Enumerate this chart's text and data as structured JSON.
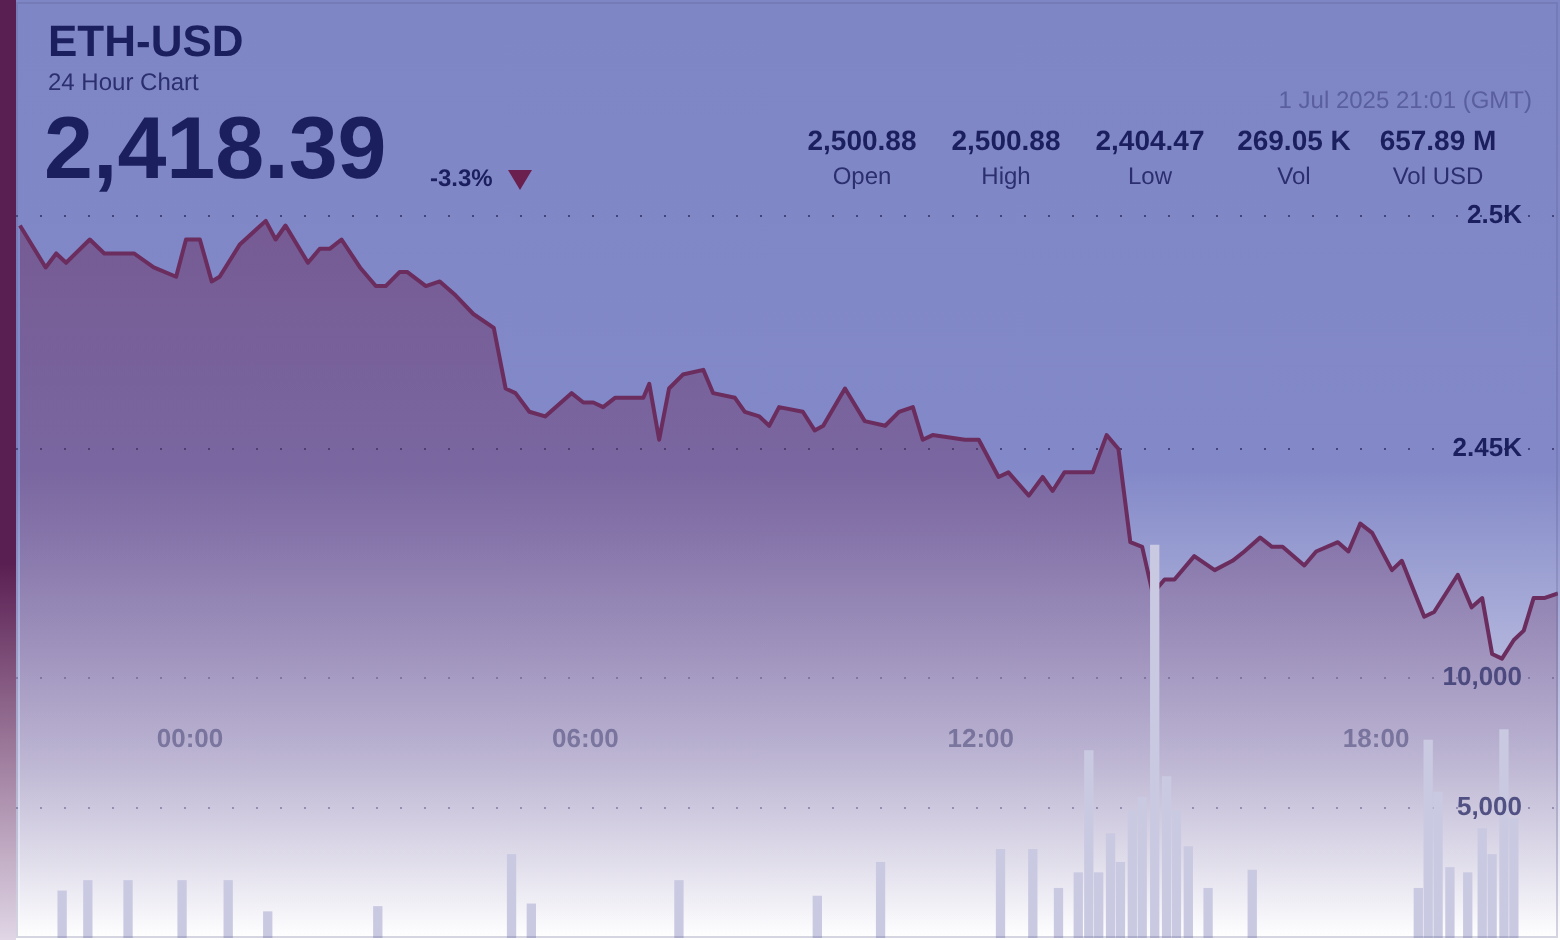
{
  "chart_data": {
    "type": "area",
    "title": "ETH-USD",
    "subtitle": "24 Hour Chart",
    "annotations": [
      "2,418.39",
      "-3.3%",
      "2,500.88",
      "Open",
      "2,500.88",
      "High",
      "2,404.47",
      "Low",
      "269.05 K",
      "Vol",
      "657.89 M",
      "Vol USD",
      "1 Jul 2025 21:01 (GMT)"
    ],
    "xlim": [
      -2.64,
      20.76
    ],
    "xticks": [
      {
        "value": 0,
        "label": "00:00"
      },
      {
        "value": 6,
        "label": "06:00"
      },
      {
        "value": 12,
        "label": "12:00"
      },
      {
        "value": 18,
        "label": "18:00"
      }
    ],
    "ylim": [
      2345,
      2546
    ],
    "yticks": [
      {
        "value": 2450,
        "label": "2.45K"
      },
      {
        "value": 2500,
        "label": "2.5K"
      }
    ],
    "y2lim": [
      0,
      36000
    ],
    "y2ticks": [
      {
        "value": 5000,
        "label": "5,000"
      },
      {
        "value": 10000,
        "label": "10,000"
      }
    ],
    "grid": "y",
    "legend": false,
    "marker": "none",
    "series": [
      {
        "color": "#6b2d5e",
        "x": [
          -2.58,
          -2.19,
          -2.03,
          -1.88,
          -1.52,
          -1.3,
          -0.85,
          -0.55,
          -0.21,
          -0.06,
          0.15,
          0.33,
          0.45,
          0.76,
          1.15,
          1.3,
          1.45,
          1.79,
          1.97,
          2.12,
          2.3,
          2.58,
          2.82,
          2.97,
          3.18,
          3.3,
          3.58,
          3.79,
          4.03,
          4.3,
          4.61,
          4.79,
          4.94,
          5.15,
          5.39,
          5.79,
          5.97,
          6.12,
          6.27,
          6.45,
          6.88,
          6.97,
          7.12,
          7.27,
          7.48,
          7.79,
          7.94,
          8.27,
          8.42,
          8.64,
          8.79,
          8.94,
          9.3,
          9.48,
          9.61,
          9.94,
          10.24,
          10.55,
          10.76,
          10.97,
          11.12,
          11.27,
          11.76,
          11.97,
          12.27,
          12.42,
          12.73,
          12.94,
          13.09,
          13.27,
          13.7,
          13.91,
          14.09,
          14.27,
          14.45,
          14.61,
          14.79,
          14.94,
          15.24,
          15.55,
          15.82,
          16,
          16.24,
          16.42,
          16.58,
          16.91,
          17.09,
          17.42,
          17.58,
          17.76,
          17.94,
          18.24,
          18.39,
          18.73,
          18.88,
          19.24,
          19.45,
          19.61,
          19.76,
          19.91,
          20.09,
          20.24,
          20.39,
          20.55,
          20.76
        ],
        "values": [
          2498,
          2489,
          2492,
          2490,
          2495,
          2492,
          2492,
          2489,
          2487,
          2495,
          2495,
          2486,
          2487,
          2494,
          2499,
          2495,
          2498,
          2490,
          2493,
          2493,
          2495,
          2489,
          2485,
          2485,
          2488,
          2488,
          2485,
          2486,
          2483,
          2479,
          2476,
          2463,
          2462,
          2458,
          2457,
          2462,
          2460,
          2460,
          2459,
          2461,
          2461,
          2464,
          2452,
          2463,
          2466,
          2467,
          2462,
          2461,
          2458,
          2457,
          2455,
          2459,
          2458,
          2454,
          2455,
          2463,
          2456,
          2455,
          2458,
          2459,
          2452,
          2453,
          2452,
          2452,
          2444,
          2445,
          2440,
          2444,
          2441,
          2445,
          2445,
          2453,
          2450,
          2430,
          2429,
          2419,
          2422,
          2422,
          2427,
          2424,
          2426,
          2428,
          2431,
          2429,
          2429,
          2425,
          2428,
          2430,
          2428,
          2434,
          2432,
          2424,
          2426,
          2414,
          2415,
          2423,
          2416,
          2418,
          2406,
          2405,
          2409,
          2411,
          2418,
          2418,
          2419
        ]
      },
      {
        "type": "bar",
        "axis": "y2",
        "color": "#c9c9e2",
        "x": [
          -1.94,
          -1.55,
          -0.94,
          -0.12,
          0.58,
          1.18,
          2.85,
          4.88,
          5.18,
          7.42,
          9.52,
          10.48,
          12.3,
          12.79,
          13.18,
          13.48,
          13.64,
          13.79,
          13.97,
          14.12,
          14.3,
          14.45,
          14.64,
          14.82,
          14.97,
          15.15,
          15.45,
          16.12,
          18.64,
          18.79,
          18.94,
          19.12,
          19.39,
          19.61,
          19.76,
          19.94,
          20.09
        ],
        "values": [
          1800,
          2200,
          2200,
          2200,
          2200,
          1000,
          1200,
          3200,
          1300,
          2200,
          1600,
          2900,
          3400,
          3400,
          1900,
          2500,
          7200,
          2500,
          4000,
          2900,
          4900,
          5400,
          15100,
          6200,
          4900,
          3500,
          1900,
          2600,
          1900,
          7600,
          5600,
          2700,
          2500,
          4200,
          3200,
          8000,
          4600
        ]
      }
    ]
  }
}
